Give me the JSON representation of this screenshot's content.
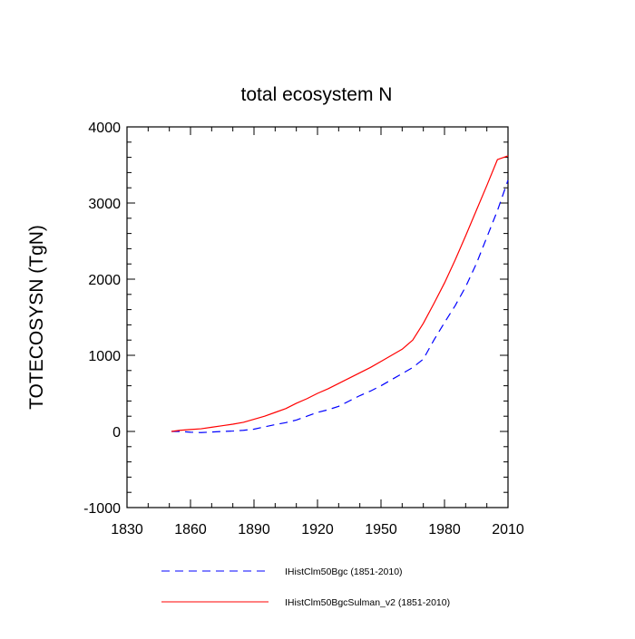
{
  "chart_data": {
    "type": "line",
    "title": "total ecosystem N",
    "xlabel": "",
    "ylabel": "TOTECOSYSN  (TgN)",
    "xlim": [
      1830,
      2010
    ],
    "ylim": [
      -1000,
      4000
    ],
    "xticks": [
      1830,
      1860,
      1890,
      1920,
      1950,
      1980,
      2010
    ],
    "yticks": [
      -1000,
      0,
      1000,
      2000,
      3000,
      4000
    ],
    "grid": false,
    "legend_position": "bottom",
    "series": [
      {
        "name": "IHistClm50Bgc (1851-2010)",
        "color": "#0000ff",
        "style": "dashed",
        "x": [
          1851,
          1855,
          1860,
          1865,
          1870,
          1875,
          1880,
          1885,
          1890,
          1895,
          1900,
          1905,
          1910,
          1915,
          1920,
          1925,
          1930,
          1935,
          1940,
          1945,
          1950,
          1955,
          1960,
          1965,
          1970,
          1975,
          1980,
          1985,
          1990,
          1995,
          2000,
          2005,
          2010
        ],
        "y": [
          0,
          0,
          -10,
          -15,
          -8,
          0,
          5,
          15,
          30,
          60,
          90,
          115,
          150,
          200,
          250,
          285,
          330,
          400,
          470,
          530,
          600,
          680,
          760,
          840,
          950,
          1200,
          1430,
          1650,
          1900,
          2200,
          2550,
          2900,
          3300
        ]
      },
      {
        "name": "IHistClm50BgcSulman_v2 (1851-2010)",
        "color": "#ff0000",
        "style": "solid",
        "x": [
          1851,
          1855,
          1860,
          1865,
          1870,
          1875,
          1880,
          1885,
          1890,
          1895,
          1900,
          1905,
          1910,
          1915,
          1920,
          1925,
          1930,
          1935,
          1940,
          1945,
          1950,
          1955,
          1960,
          1965,
          1970,
          1975,
          1980,
          1985,
          1990,
          1995,
          2000,
          2005,
          2010
        ],
        "y": [
          0,
          15,
          25,
          35,
          55,
          75,
          95,
          120,
          160,
          200,
          250,
          300,
          370,
          430,
          500,
          560,
          630,
          700,
          770,
          840,
          920,
          1000,
          1080,
          1200,
          1420,
          1680,
          1950,
          2250,
          2570,
          2900,
          3230,
          3570,
          3620
        ]
      }
    ]
  }
}
